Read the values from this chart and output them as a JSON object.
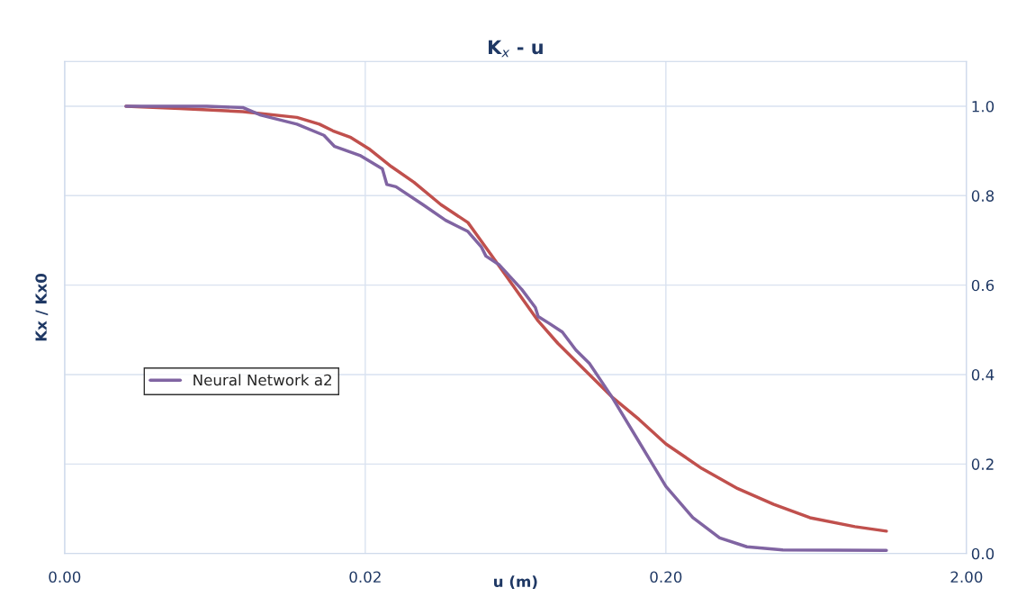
{
  "chart_data": {
    "type": "line",
    "title": "K$_{x}$ - u",
    "xlabel": "u (m)",
    "ylabel": "Kx / Kx0",
    "log": "x",
    "xlim": [
      0.002,
      2
    ],
    "xticks": [
      {
        "value": 0.002,
        "label": "0.00"
      },
      {
        "value": 0.02,
        "label": "0.02"
      },
      {
        "value": 0.2,
        "label": "0.20"
      },
      {
        "value": 2,
        "label": "2.00"
      }
    ],
    "ylim": [
      0,
      1.1
    ],
    "yticks": [
      {
        "value": 0,
        "label": "0.0"
      },
      {
        "value": 0.2,
        "label": "0.2"
      },
      {
        "value": 0.4,
        "label": "0.4"
      },
      {
        "value": 0.6,
        "label": "0.6"
      },
      {
        "value": 0.8,
        "label": "0.8"
      },
      {
        "value": 1.0,
        "label": "1.0"
      }
    ],
    "grid": true,
    "legend": "center left",
    "marker": "none",
    "line_style": "solid",
    "series": [
      {
        "color": "#c0504d",
        "x": [
          0.0032,
          0.00483,
          0.00783,
          0.01185,
          0.01407,
          0.01561,
          0.01791,
          0.02056,
          0.02443,
          0.02903,
          0.0357,
          0.0439,
          0.0522,
          0.0619,
          0.0752,
          0.0874,
          0.1075,
          0.1323,
          0.1627,
          0.2,
          0.2636,
          0.347,
          0.457,
          0.603,
          0.851,
          1.083
        ],
        "values": [
          1.0,
          0.995,
          0.988,
          0.975,
          0.96,
          0.945,
          0.93,
          0.905,
          0.865,
          0.83,
          0.78,
          0.74,
          0.67,
          0.6,
          0.52,
          0.47,
          0.41,
          0.35,
          0.3,
          0.245,
          0.19,
          0.145,
          0.11,
          0.08,
          0.06,
          0.05
        ]
      },
      {
        "name": "Neural Network a2",
        "color": "#8064a2",
        "x": [
          0.0032,
          0.00594,
          0.00783,
          0.00899,
          0.01185,
          0.01457,
          0.01582,
          0.01919,
          0.0228,
          0.0236,
          0.0253,
          0.0311,
          0.037,
          0.0439,
          0.0487,
          0.0504,
          0.0559,
          0.0664,
          0.0736,
          0.0752,
          0.0816,
          0.0905,
          0.1004,
          0.1113,
          0.1323,
          0.1627,
          0.2,
          0.246,
          0.302,
          0.372,
          0.49,
          1.083
        ],
        "values": [
          1.0,
          1.0,
          0.997,
          0.98,
          0.96,
          0.935,
          0.91,
          0.89,
          0.86,
          0.825,
          0.82,
          0.78,
          0.745,
          0.72,
          0.685,
          0.665,
          0.645,
          0.59,
          0.55,
          0.53,
          0.515,
          0.495,
          0.455,
          0.425,
          0.35,
          0.25,
          0.15,
          0.08,
          0.035,
          0.015,
          0.008,
          0.007
        ]
      }
    ]
  }
}
